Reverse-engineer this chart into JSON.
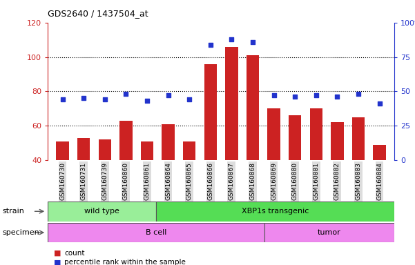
{
  "title": "GDS2640 / 1437504_at",
  "categories": [
    "GSM160730",
    "GSM160731",
    "GSM160739",
    "GSM160860",
    "GSM160861",
    "GSM160864",
    "GSM160865",
    "GSM160866",
    "GSM160867",
    "GSM160868",
    "GSM160869",
    "GSM160880",
    "GSM160881",
    "GSM160882",
    "GSM160883",
    "GSM160884"
  ],
  "count_values": [
    51,
    53,
    52,
    63,
    51,
    61,
    51,
    96,
    106,
    101,
    70,
    66,
    70,
    62,
    65,
    49
  ],
  "percentile_values": [
    44,
    45,
    44,
    48,
    43,
    47,
    44,
    84,
    88,
    86,
    47,
    46,
    47,
    46,
    48,
    41
  ],
  "ymin": 40,
  "ymax": 120,
  "yticks": [
    40,
    60,
    80,
    100,
    120
  ],
  "right_yticks": [
    0,
    25,
    50,
    75,
    100
  ],
  "right_yticklabels": [
    "0",
    "25",
    "50",
    "75",
    "100%"
  ],
  "bar_color": "#cc2222",
  "dot_color": "#2233cc",
  "strain_groups": [
    {
      "label": "wild type",
      "start": 0,
      "end": 5,
      "color": "#99ee99"
    },
    {
      "label": "XBP1s transgenic",
      "start": 5,
      "end": 16,
      "color": "#55dd55"
    }
  ],
  "specimen_groups": [
    {
      "label": "B cell",
      "start": 0,
      "end": 10
    },
    {
      "label": "tumor",
      "start": 10,
      "end": 16
    }
  ],
  "specimen_color": "#ee88ee",
  "strain_label": "strain",
  "specimen_label": "specimen",
  "legend_count_label": "count",
  "legend_pct_label": "percentile rank within the sample",
  "left_label_color": "#cc2222",
  "right_label_color": "#2233cc",
  "tick_bg_color": "#dddddd"
}
